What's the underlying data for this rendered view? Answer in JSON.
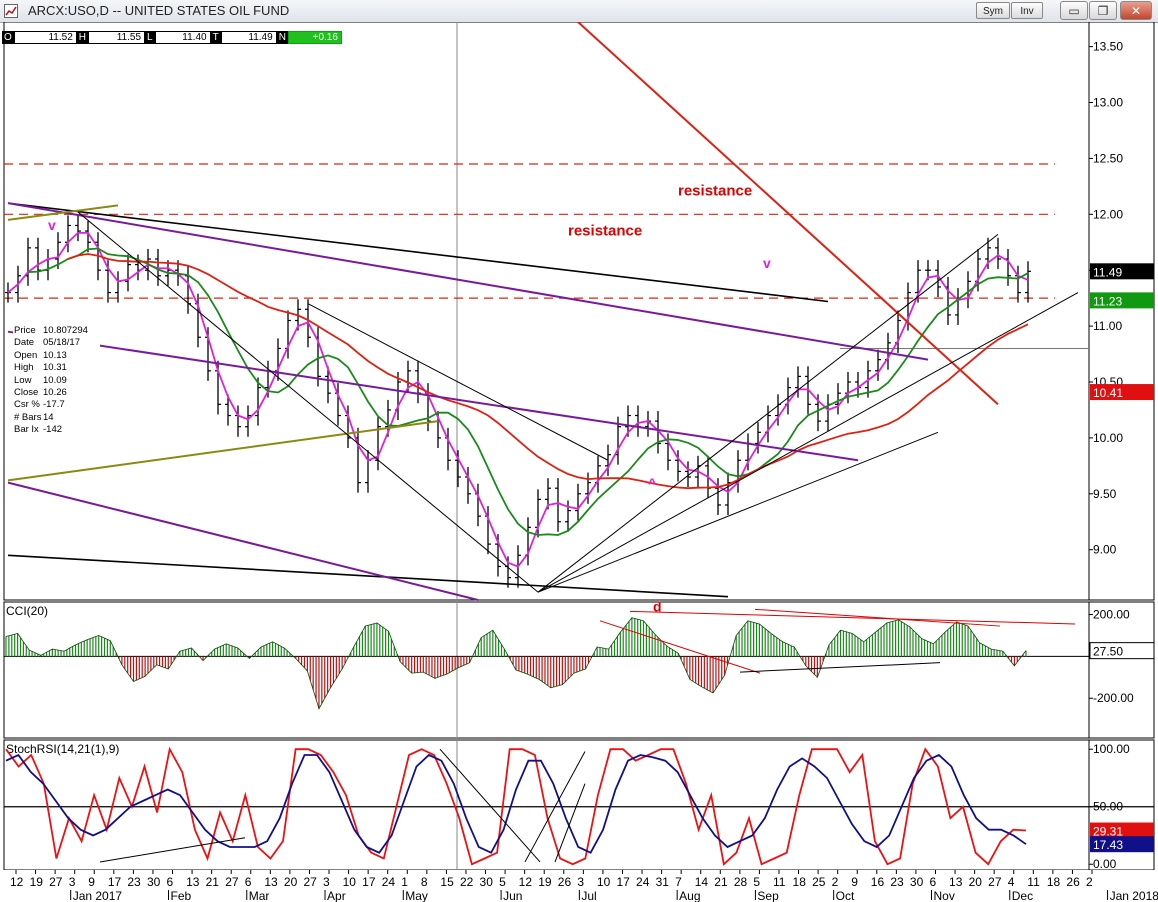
{
  "window": {
    "title": "ARCX:USO,D -- UNITED STATES OIL FUND",
    "sym_button": "Sym",
    "inv_button": "Inv",
    "minimize_glyph": "▭",
    "restore_glyph": "❐",
    "close_glyph": "✕"
  },
  "ohlc_bar": [
    {
      "label": "O",
      "value": "11.52"
    },
    {
      "label": "H",
      "value": "11.55"
    },
    {
      "label": "L",
      "value": "11.40"
    },
    {
      "label": "T",
      "value": "11.49"
    },
    {
      "label": "N",
      "value": "+0.16",
      "accent": "#1fc01f"
    }
  ],
  "cursor_info": [
    {
      "k": "Price",
      "v": "10.807294"
    },
    {
      "k": "Date",
      "v": "05/18/17"
    },
    {
      "k": "Open",
      "v": "10.13"
    },
    {
      "k": "High",
      "v": "10.31"
    },
    {
      "k": "Low",
      "v": "10.09"
    },
    {
      "k": "Close",
      "v": "10.26"
    },
    {
      "k": "Csr %",
      "v": "-17.7"
    },
    {
      "k": "# Bars",
      "v": "14"
    },
    {
      "k": "Bar Ix",
      "v": "-142"
    }
  ],
  "chart_data": {
    "type": "bar",
    "chart_kind": "OHLC price bars with moving averages, CCI and StochRSI panes",
    "symbol": "ARCX:USO",
    "period": "daily",
    "colors": {
      "price_bars": "#000000",
      "ma_fast": "#e020e0",
      "ma_mid": "#1a8a1a",
      "ma_slow": "#e02010",
      "trendline_purple": "#7a1a9a",
      "trendline_olive": "#8a8a10",
      "trendline_red": "#e02010",
      "cci_positive": "#1a8a1a",
      "cci_negative": "#c01010",
      "stoch_fast": "#f01010",
      "stoch_slow": "#10108a",
      "annotation": "#e00000",
      "marker": "#e020e0"
    },
    "price_panel": {
      "ylim": [
        8.55,
        13.72
      ],
      "yticks": [
        "13.50",
        "13.00",
        "12.50",
        "12.00",
        "11.50",
        "11.00",
        "10.50",
        "10.00",
        "9.50",
        "9.00"
      ],
      "value_labels": [
        {
          "text": "11.49",
          "value": 11.49,
          "bg": "#000000",
          "fg": "#ffffff"
        },
        {
          "text": "11.23",
          "value": 11.23,
          "bg": "#119911",
          "fg": "#ffffff"
        },
        {
          "text": "10.41",
          "value": 10.41,
          "bg": "#e01010",
          "fg": "#ffffff"
        }
      ],
      "dashed_levels": [
        12.45,
        12.0,
        11.25
      ],
      "annotations": [
        {
          "text": "resistance",
          "x": 67,
          "y": 12.17,
          "color": "#e00000"
        },
        {
          "text": "resistance",
          "x": 56,
          "y": 11.81,
          "color": "#e00000"
        },
        {
          "text": "v",
          "x": 4,
          "y": 11.86,
          "color": "#e020e0"
        },
        {
          "text": "v",
          "x": 75.5,
          "y": 11.52,
          "color": "#e020e0"
        },
        {
          "text": "^",
          "x": 64,
          "y": 9.55,
          "color": "#e020e0"
        }
      ],
      "ohlc_daily_closes_approx": [
        11.3,
        11.45,
        11.7,
        11.5,
        11.6,
        11.75,
        11.9,
        11.85,
        11.75,
        11.5,
        11.3,
        11.4,
        11.55,
        11.5,
        11.6,
        11.45,
        11.5,
        11.45,
        11.2,
        10.9,
        10.6,
        10.3,
        10.2,
        10.1,
        10.2,
        10.45,
        10.6,
        10.8,
        11.05,
        11.15,
        10.9,
        10.55,
        10.4,
        10.2,
        10.0,
        9.6,
        9.8,
        10.1,
        10.25,
        10.5,
        10.6,
        10.4,
        10.15,
        10.0,
        9.8,
        9.65,
        9.5,
        9.3,
        9.05,
        8.85,
        8.75,
        8.95,
        9.2,
        9.45,
        9.55,
        9.25,
        9.35,
        9.5,
        9.6,
        9.75,
        9.85,
        10.1,
        10.2,
        10.1,
        10.15,
        9.95,
        9.8,
        9.7,
        9.65,
        9.75,
        9.55,
        9.4,
        9.6,
        9.8,
        9.95,
        10.05,
        10.2,
        10.3,
        10.45,
        10.55,
        10.3,
        10.15,
        10.3,
        10.4,
        10.5,
        10.45,
        10.6,
        10.7,
        10.85,
        11.05,
        11.3,
        11.5,
        11.5,
        11.35,
        11.1,
        11.25,
        11.4,
        11.6,
        11.7,
        11.6,
        11.45,
        11.3,
        11.49
      ]
    },
    "cci_panel": {
      "title": "CCI(20)",
      "ylim": [
        -390,
        260
      ],
      "yticks": [
        "200.00",
        "-200.00"
      ],
      "last_value_label": "27.50",
      "last_value": 27.5,
      "annotations": [
        {
          "text": "d",
          "x": 64.5,
          "y": 215,
          "color": "#e00000"
        }
      ],
      "values_approx": [
        95,
        110,
        30,
        5,
        35,
        25,
        55,
        80,
        100,
        75,
        -40,
        -120,
        -95,
        -40,
        -60,
        25,
        40,
        -20,
        35,
        60,
        40,
        -10,
        45,
        70,
        40,
        -10,
        -70,
        -250,
        -150,
        -60,
        45,
        145,
        160,
        120,
        -25,
        -80,
        -75,
        -105,
        -85,
        -55,
        -30,
        90,
        125,
        35,
        -65,
        -85,
        -110,
        -150,
        -135,
        -80,
        -60,
        45,
        35,
        115,
        185,
        170,
        105,
        50,
        15,
        -110,
        -145,
        -175,
        -90,
        100,
        170,
        155,
        110,
        70,
        45,
        -45,
        -100,
        55,
        125,
        110,
        70,
        115,
        160,
        175,
        140,
        85,
        60,
        115,
        165,
        145,
        65,
        35,
        25,
        -45,
        27.5
      ]
    },
    "stochrsi_panel": {
      "title": "StochRSI(14,21(1),9)",
      "ylim": [
        -5,
        108
      ],
      "yticks": [
        "100.00",
        "50.00",
        "0.00"
      ],
      "reference_line": 50,
      "value_labels": [
        {
          "text": "29.31",
          "value": 29.31,
          "bg": "#e01010",
          "fg": "#ffffff"
        },
        {
          "text": "17.43",
          "value": 17.43,
          "bg": "#10108a",
          "fg": "#ffffff"
        }
      ],
      "fast_approx": [
        100,
        85,
        95,
        70,
        5,
        40,
        20,
        60,
        30,
        75,
        50,
        85,
        45,
        100,
        80,
        30,
        5,
        45,
        20,
        60,
        15,
        5,
        20,
        100,
        100,
        95,
        80,
        60,
        25,
        10,
        5,
        50,
        95,
        100,
        95,
        70,
        40,
        0,
        5,
        10,
        100,
        100,
        95,
        40,
        5,
        0,
        5,
        60,
        100,
        100,
        90,
        95,
        100,
        100,
        70,
        30,
        60,
        0,
        10,
        40,
        0,
        5,
        10,
        60,
        100,
        100,
        100,
        80,
        95,
        20,
        0,
        5,
        70,
        100,
        85,
        40,
        50,
        10,
        0,
        20,
        30,
        29.31
      ],
      "slow_approx": [
        90,
        95,
        80,
        70,
        55,
        40,
        30,
        25,
        30,
        40,
        50,
        55,
        60,
        65,
        60,
        45,
        30,
        20,
        15,
        15,
        15,
        20,
        40,
        70,
        95,
        95,
        80,
        55,
        30,
        15,
        10,
        25,
        55,
        85,
        95,
        90,
        70,
        40,
        15,
        10,
        30,
        65,
        90,
        90,
        70,
        40,
        15,
        10,
        30,
        65,
        90,
        95,
        93,
        90,
        80,
        60,
        40,
        25,
        15,
        20,
        25,
        40,
        65,
        85,
        92,
        85,
        75,
        55,
        35,
        20,
        15,
        25,
        50,
        75,
        90,
        95,
        85,
        60,
        40,
        30,
        30,
        25,
        17.43
      ]
    },
    "x_axis": {
      "tick_labels": [
        "12",
        "19",
        "27",
        "3",
        "9",
        "17",
        "23",
        "30",
        "6",
        "13",
        "21",
        "27",
        "6",
        "13",
        "20",
        "27",
        "3",
        "10",
        "17",
        "24",
        "1",
        "8",
        "15",
        "22",
        "30",
        "5",
        "12",
        "19",
        "26",
        "3",
        "10",
        "17",
        "24",
        "31",
        "7",
        "14",
        "21",
        "28",
        "5",
        "11",
        "18",
        "25",
        "2",
        "9",
        "16",
        "23",
        "30",
        "6",
        "13",
        "20",
        "27",
        "4",
        "11",
        "18",
        "26",
        "2"
      ],
      "month_labels": [
        "Jan 2017",
        "Feb",
        "Mar",
        "Apr",
        "May",
        "Jun",
        "Jul",
        "Aug",
        "Sep",
        "Oct",
        "Nov",
        "Dec",
        "Jan 2018"
      ]
    }
  }
}
